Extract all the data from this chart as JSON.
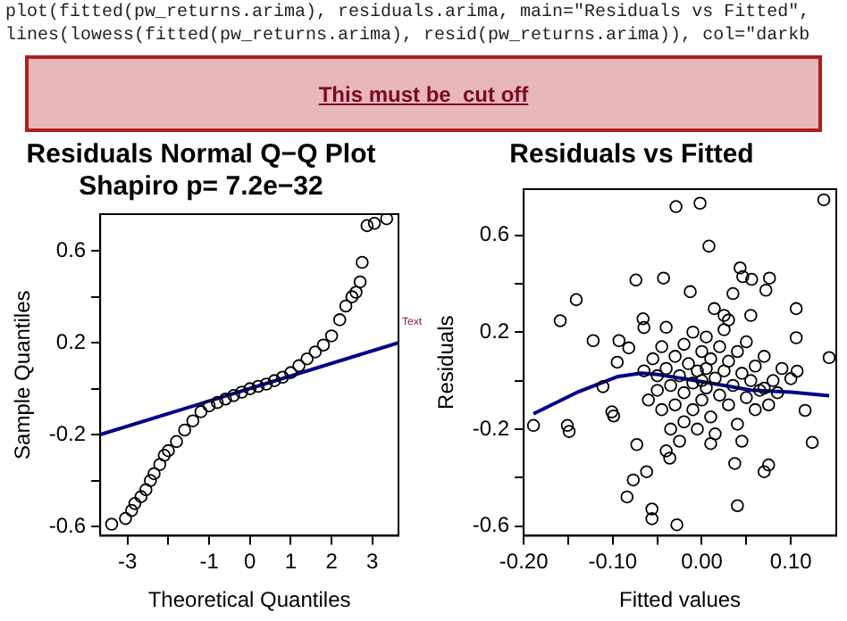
{
  "chart_data": [
    {
      "type": "other",
      "annotations": [
        "plot(fitted(pw_returns.arima), residuals.arima, main=\"Residuals vs Fitted\",",
        "lines(lowess(fitted(pw_returns.arima), resid(pw_returns.arima)), col=\"darkb",
        "This must be  cut off"
      ]
    },
    {
      "type": "scatter",
      "title": "Residuals Normal Q−Q Plot",
      "subtitle": "Shapiro p= 7.2e−32",
      "xlabel": "Theoretical Quantiles",
      "ylabel": "Sample Quantiles",
      "annotations": [
        "Text"
      ],
      "grid": false,
      "legend": false,
      "xlim": [
        -3.67,
        3.64
      ],
      "xticks": [
        -3,
        {
          "value": -2,
          "label": null
        },
        -1,
        0,
        1,
        2,
        3
      ],
      "ylim": [
        -0.64,
        0.76
      ],
      "yticks": [
        -0.6,
        {
          "value": -0.4,
          "label": null
        },
        -0.2,
        {
          "value": 0,
          "label": null
        },
        0.2,
        {
          "value": 0.4,
          "label": null
        },
        0.6
      ],
      "series": [
        {
          "type": "scatter",
          "marker": "circle",
          "color": "#000000",
          "x": [
            -3.39,
            -3.05,
            -2.9,
            -2.82,
            -2.67,
            -2.55,
            -2.44,
            -2.35,
            -2.21,
            -2.1,
            -2.0,
            -1.8,
            -1.6,
            -1.4,
            -1.2,
            -1.0,
            -0.8,
            -0.6,
            -0.4,
            -0.2,
            0,
            0.2,
            0.4,
            0.6,
            0.8,
            1.0,
            1.2,
            1.4,
            1.6,
            1.8,
            2.0,
            2.2,
            2.35,
            2.5,
            2.6,
            2.7,
            2.75,
            2.87,
            3.05,
            3.35
          ],
          "values": [
            -0.59,
            -0.565,
            -0.53,
            -0.5,
            -0.47,
            -0.44,
            -0.4,
            -0.37,
            -0.33,
            -0.29,
            -0.27,
            -0.23,
            -0.18,
            -0.14,
            -0.1,
            -0.075,
            -0.06,
            -0.045,
            -0.03,
            -0.015,
            0,
            0.01,
            0.02,
            0.035,
            0.05,
            0.07,
            0.1,
            0.13,
            0.16,
            0.19,
            0.23,
            0.3,
            0.36,
            0.4,
            0.42,
            0.465,
            0.55,
            0.71,
            0.72,
            0.74
          ]
        },
        {
          "type": "line",
          "marker": "none",
          "color": "#00008b",
          "x": [
            -3.67,
            3.64
          ],
          "values": [
            -0.2,
            0.2
          ]
        }
      ]
    },
    {
      "type": "scatter",
      "title": "Residuals vs Fitted",
      "xlabel": "Fitted values",
      "ylabel": "Residuals",
      "grid": false,
      "legend": false,
      "xlim": [
        -0.2,
        0.151
      ],
      "xticks": [
        {
          "value": -0.2,
          "label": "-0.20"
        },
        {
          "value": -0.15,
          "label": null
        },
        {
          "value": -0.1,
          "label": "-0.10"
        },
        {
          "value": -0.05,
          "label": null
        },
        {
          "value": 0,
          "label": "0.00"
        },
        {
          "value": 0.05,
          "label": null
        },
        {
          "value": 0.1,
          "label": "0.10"
        }
      ],
      "ylim": [
        -0.64,
        0.79
      ],
      "yticks": [
        -0.6,
        {
          "value": -0.4,
          "label": null
        },
        -0.2,
        {
          "value": 0,
          "label": null
        },
        0.2,
        {
          "value": 0.4,
          "label": null
        },
        0.6
      ],
      "series": [
        {
          "type": "scatter",
          "marker": "circle",
          "color": "#000000",
          "x": [
            -0.189,
            -0.159,
            -0.151,
            -0.149,
            -0.141,
            -0.122,
            -0.111,
            -0.095,
            -0.093,
            -0.082,
            -0.101,
            -0.099,
            -0.084,
            -0.077,
            -0.074,
            -0.073,
            -0.066,
            -0.065,
            -0.062,
            -0.056,
            -0.056,
            -0.043,
            -0.04,
            -0.036,
            -0.029,
            -0.028,
            -0.002,
            0.008,
            0.043,
            0.046,
            0.056,
            0.076,
            0.072,
            0.07,
            0.04,
            0.037,
            0.055,
            0.106,
            0.106,
            0.107,
            0.1,
            0.137,
            0.143,
            0.124,
            0.116,
            0.075,
            0.07,
            0.014,
            -0.013,
            0.035,
            0.025,
            -0.04,
            -0.035,
            -0.03,
            -0.03,
            -0.025,
            -0.02,
            -0.02,
            -0.02,
            -0.015,
            -0.01,
            -0.01,
            -0.01,
            -0.005,
            -0.005,
            0,
            0,
            0,
            0.005,
            0.005,
            0.005,
            0.01,
            0.01,
            0.015,
            0.015,
            0.02,
            0.02,
            0.025,
            0.025,
            0.03,
            0.03,
            0.035,
            0.04,
            0.04,
            0.045,
            0.05,
            0.05,
            0.055,
            0.06,
            0.06,
            -0.045,
            -0.045,
            -0.05,
            -0.05,
            -0.04,
            -0.035,
            0.065,
            0.07,
            -0.055,
            0.03,
            0.01,
            -0.025,
            0.045,
            0.08,
            0.075,
            -0.06,
            -0.065,
            0.085,
            0.09
          ],
          "values": [
            -0.185,
            0.247,
            -0.185,
            -0.21,
            0.334,
            0.165,
            -0.025,
            0.076,
            0.165,
            0.135,
            -0.129,
            -0.146,
            -0.48,
            -0.41,
            0.415,
            -0.264,
            0.255,
            0.219,
            -0.376,
            -0.53,
            -0.57,
            0.423,
            -0.29,
            -0.32,
            0.718,
            -0.595,
            0.732,
            0.555,
            0.465,
            0.429,
            0.418,
            0.423,
            0.373,
            -0.376,
            -0.516,
            -0.342,
            0.269,
            0.297,
            0.177,
            0.039,
            0.008,
            0.746,
            0.095,
            -0.255,
            -0.123,
            -0.348,
            -0.031,
            0.297,
            0.367,
            0.359,
            0.269,
            0.05,
            -0.02,
            0.1,
            -0.1,
            0.02,
            0.15,
            -0.05,
            -0.17,
            0.07,
            0.2,
            -0.01,
            -0.12,
            0.04,
            -0.2,
            0.12,
            0,
            -0.08,
            0.18,
            0.05,
            -0.03,
            -0.15,
            0.09,
            0.01,
            -0.22,
            0.14,
            -0.06,
            0.04,
            0.21,
            -0.1,
            0.08,
            -0.02,
            0.12,
            -0.18,
            0.03,
            -0.07,
            0.16,
            0,
            -0.12,
            0.06,
            -0.12,
            0.14,
            -0.04,
            0.02,
            0.22,
            -0.2,
            -0.04,
            0.1,
            0.09,
            0.25,
            -0.26,
            -0.25,
            -0.25,
            0,
            -0.1,
            -0.08,
            0.04,
            -0.05,
            0.05
          ]
        },
        {
          "type": "line",
          "marker": "none",
          "color": "#00008b",
          "x": [
            -0.189,
            -0.138,
            -0.094,
            -0.068,
            -0.049,
            -0.012,
            0.025,
            0.055,
            0.1,
            0.143
          ],
          "values": [
            -0.137,
            -0.045,
            0.017,
            0.031,
            0.025,
            0.003,
            -0.02,
            -0.039,
            -0.048,
            -0.062
          ]
        }
      ]
    }
  ]
}
